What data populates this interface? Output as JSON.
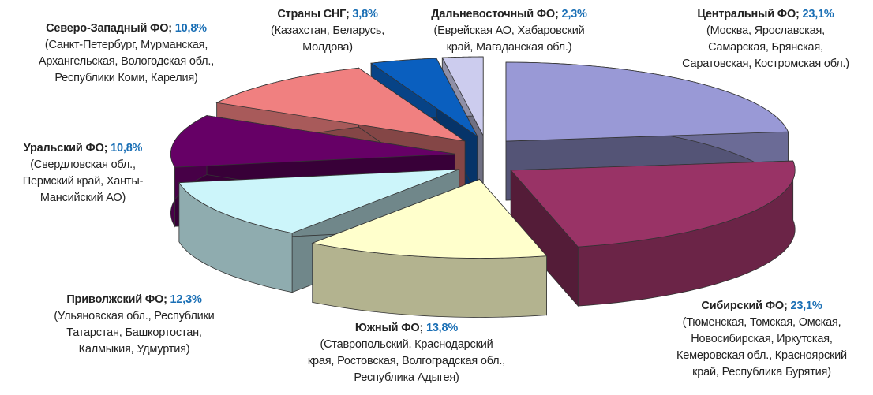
{
  "chart_data": {
    "type": "pie",
    "categories": [
      "Центральный ФО;",
      "Сибирский ФО;",
      "Южный ФО;",
      "Приволжский ФО;",
      "Уральский ФО;",
      "Северо-Западный ФО;",
      "Страны СНГ;",
      "Дальневосточный ФО;"
    ],
    "values": [
      23.1,
      23.1,
      13.8,
      12.3,
      10.8,
      10.8,
      3.8,
      2.3
    ],
    "value_labels": [
      "23,1%",
      "23,1%",
      "13,8%",
      "12,3%",
      "10,8%",
      "10,8%",
      "3,8%",
      "2,3%"
    ],
    "descriptions": [
      [
        "(Москва, Ярославская,",
        "Самарская, Брянская,",
        "Саратовская, Костромская обл.)"
      ],
      [
        "(Тюменская, Томская, Омская,",
        "Новосибирская, Иркутская,",
        "Кемеровская обл., Красноярский",
        "край, Республика Бурятия)"
      ],
      [
        "(Ставропольский, Краснодарский",
        "края, Ростовская, Волгоградская обл.,",
        "Республика Адыгея)"
      ],
      [
        "(Ульяновская обл., Республики",
        "Татарстан, Башкортостан,",
        "Калмыкия, Удмуртия)"
      ],
      [
        "(Свердловская обл.,",
        "Пермский край, Ханты-",
        "Мансийский АО)"
      ],
      [
        "(Санкт-Петербург, Мурманская,",
        "Архангельская, Вологодская обл.,",
        "Республики Коми, Карелия)"
      ],
      [
        "(Казахстан, Беларусь,",
        "Молдова)"
      ],
      [
        "(Еврейская АО, Хабаровский",
        "край, Магаданская обл.)"
      ]
    ],
    "colors": [
      "#9999d6",
      "#993366",
      "#ffffcc",
      "#ccf5fa",
      "#660066",
      "#f08080",
      "#0a5fbf",
      "#ccccee"
    ]
  }
}
